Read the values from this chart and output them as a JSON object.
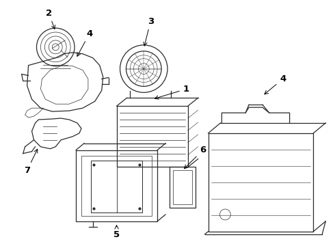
{
  "background_color": "#ffffff",
  "line_color": "#2a2a2a",
  "figsize": [
    4.9,
    3.6
  ],
  "dpi": 100,
  "label_fontsize": 9.5
}
